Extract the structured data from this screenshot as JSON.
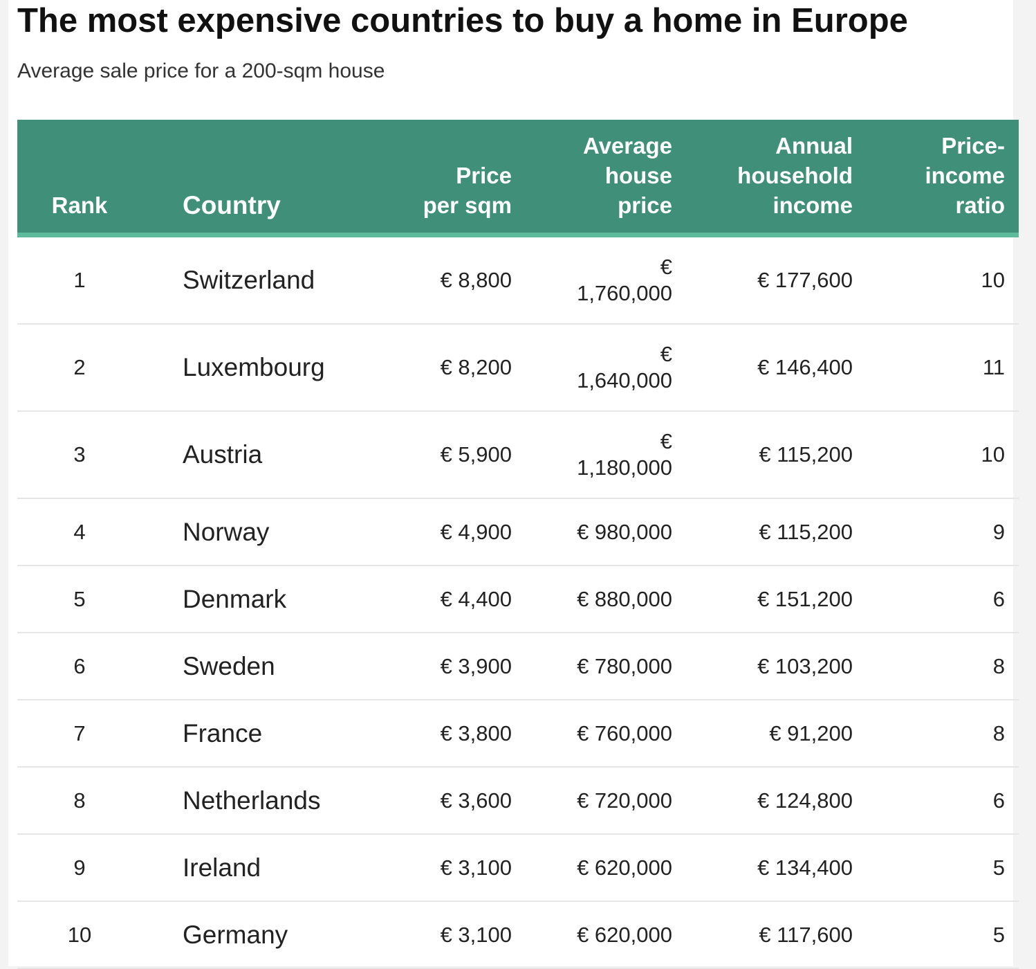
{
  "header": {
    "title": "The most expensive countries to buy a home in Europe",
    "subtitle": "Average sale price for a 200-sqm house"
  },
  "table": {
    "columns": [
      [
        "Rank"
      ],
      [
        "Country"
      ],
      [
        "Price",
        "per sqm"
      ],
      [
        "Average",
        "house",
        "price"
      ],
      [
        "Annual",
        "household",
        "income"
      ],
      [
        "Price-",
        "income",
        "ratio"
      ]
    ],
    "rows": [
      [
        "1",
        "Switzerland",
        "€ 8,800",
        "€ 1,760,000",
        "€ 177,600",
        "10"
      ],
      [
        "2",
        "Luxembourg",
        "€ 8,200",
        "€ 1,640,000",
        "€ 146,400",
        "11"
      ],
      [
        "3",
        "Austria",
        "€ 5,900",
        "€ 1,180,000",
        "€ 115,200",
        "10"
      ],
      [
        "4",
        "Norway",
        "€ 4,900",
        "€ 980,000",
        "€ 115,200",
        "9"
      ],
      [
        "5",
        "Denmark",
        "€ 4,400",
        "€ 880,000",
        "€ 151,200",
        "6"
      ],
      [
        "6",
        "Sweden",
        "€ 3,900",
        "€ 780,000",
        "€ 103,200",
        "8"
      ],
      [
        "7",
        "France",
        "€ 3,800",
        "€ 760,000",
        "€ 91,200",
        "8"
      ],
      [
        "8",
        "Netherlands",
        "€ 3,600",
        "€ 720,000",
        "€ 124,800",
        "6"
      ],
      [
        "9",
        "Ireland",
        "€ 3,100",
        "€ 620,000",
        "€ 134,400",
        "5"
      ],
      [
        "10",
        "Germany",
        "€ 3,100",
        "€ 620,000",
        "€ 117,600",
        "5"
      ]
    ]
  }
}
